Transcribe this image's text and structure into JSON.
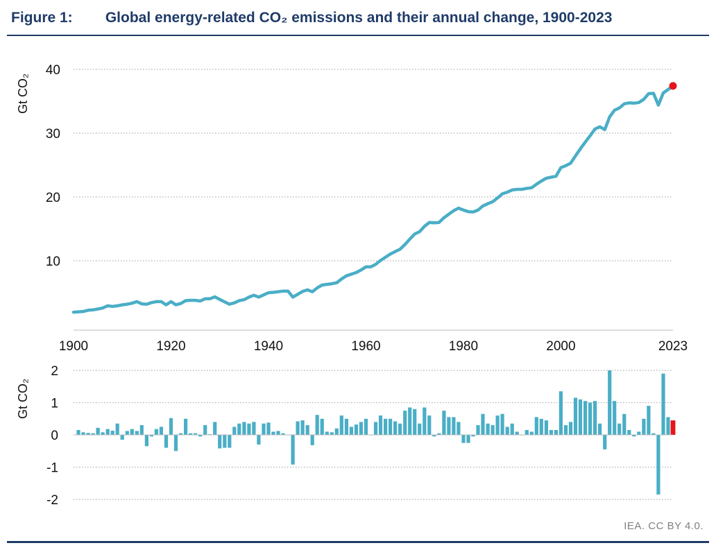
{
  "header": {
    "figure_label": "Figure 1:",
    "title": "Global energy-related CO₂ emissions and their annual change, 1900-2023"
  },
  "credit": "IEA. CC BY 4.0.",
  "colors": {
    "series": "#4aaec6",
    "highlight": "#e8141b",
    "title": "#1f3b68",
    "grid": "#b0b0b0"
  },
  "chart_data": [
    {
      "type": "line",
      "ylabel": "Gt CO₂",
      "ylim": [
        0,
        40
      ],
      "yticks": [
        10,
        20,
        30,
        40
      ],
      "xlim": [
        1900,
        2023
      ],
      "xticks": [
        1900,
        1920,
        1940,
        1960,
        1980,
        2000,
        2023
      ],
      "grid": "horizontal dotted",
      "highlight_point": {
        "x": 2023,
        "y": 37.4
      },
      "x": [
        1900,
        1901,
        1902,
        1903,
        1904,
        1905,
        1906,
        1907,
        1908,
        1909,
        1910,
        1911,
        1912,
        1913,
        1914,
        1915,
        1916,
        1917,
        1918,
        1919,
        1920,
        1921,
        1922,
        1923,
        1924,
        1925,
        1926,
        1927,
        1928,
        1929,
        1930,
        1931,
        1932,
        1933,
        1934,
        1935,
        1936,
        1937,
        1938,
        1939,
        1940,
        1941,
        1942,
        1943,
        1944,
        1945,
        1946,
        1947,
        1948,
        1949,
        1950,
        1951,
        1952,
        1953,
        1954,
        1955,
        1956,
        1957,
        1958,
        1959,
        1960,
        1961,
        1962,
        1963,
        1964,
        1965,
        1966,
        1967,
        1968,
        1969,
        1970,
        1971,
        1972,
        1973,
        1974,
        1975,
        1976,
        1977,
        1978,
        1979,
        1980,
        1981,
        1982,
        1983,
        1984,
        1985,
        1986,
        1987,
        1988,
        1989,
        1990,
        1991,
        1992,
        1993,
        1994,
        1995,
        1996,
        1997,
        1998,
        1999,
        2000,
        2001,
        2002,
        2003,
        2004,
        2005,
        2006,
        2007,
        2008,
        2009,
        2010,
        2011,
        2012,
        2013,
        2014,
        2015,
        2016,
        2017,
        2018,
        2019,
        2020,
        2021,
        2022,
        2023
      ],
      "y": [
        1.95,
        2.0,
        2.05,
        2.25,
        2.3,
        2.45,
        2.6,
        2.95,
        2.85,
        2.95,
        3.1,
        3.2,
        3.35,
        3.6,
        3.25,
        3.2,
        3.45,
        3.6,
        3.6,
        3.1,
        3.6,
        3.1,
        3.3,
        3.75,
        3.8,
        3.8,
        3.7,
        4.05,
        4.05,
        4.35,
        3.95,
        3.55,
        3.2,
        3.4,
        3.75,
        3.9,
        4.3,
        4.6,
        4.3,
        4.65,
        5.0,
        5.05,
        5.15,
        5.25,
        5.25,
        4.3,
        4.75,
        5.2,
        5.45,
        5.15,
        5.75,
        6.2,
        6.3,
        6.4,
        6.55,
        7.15,
        7.65,
        7.9,
        8.15,
        8.55,
        9.05,
        9.05,
        9.45,
        10.05,
        10.55,
        11.05,
        11.45,
        11.8,
        12.55,
        13.4,
        14.2,
        14.55,
        15.4,
        16.0,
        15.95,
        16.0,
        16.75,
        17.3,
        17.85,
        18.25,
        17.95,
        17.7,
        17.65,
        17.95,
        18.6,
        18.95,
        19.25,
        19.85,
        20.5,
        20.75,
        21.1,
        21.2,
        21.2,
        21.35,
        21.45,
        22.0,
        22.5,
        22.95,
        23.1,
        23.25,
        24.6,
        24.9,
        25.3,
        26.45,
        27.55,
        28.6,
        29.6,
        30.65,
        31.0,
        30.55,
        32.55,
        33.6,
        33.95,
        34.6,
        34.75,
        34.7,
        34.8,
        35.3,
        36.2,
        36.25,
        34.4,
        36.3,
        36.85,
        37.4
      ]
    },
    {
      "type": "bar",
      "ylabel": "Gt CO₂",
      "ylim": [
        -2,
        2
      ],
      "yticks": [
        2,
        1,
        0,
        -1,
        -2
      ],
      "grid": "horizontal dotted",
      "highlight_category": 2023,
      "x": [
        1901,
        1902,
        1903,
        1904,
        1905,
        1906,
        1907,
        1908,
        1909,
        1910,
        1911,
        1912,
        1913,
        1914,
        1915,
        1916,
        1917,
        1918,
        1919,
        1920,
        1921,
        1922,
        1923,
        1924,
        1925,
        1926,
        1927,
        1928,
        1929,
        1930,
        1931,
        1932,
        1933,
        1934,
        1935,
        1936,
        1937,
        1938,
        1939,
        1940,
        1941,
        1942,
        1943,
        1944,
        1945,
        1946,
        1947,
        1948,
        1949,
        1950,
        1951,
        1952,
        1953,
        1954,
        1955,
        1956,
        1957,
        1958,
        1959,
        1960,
        1961,
        1962,
        1963,
        1964,
        1965,
        1966,
        1967,
        1968,
        1969,
        1970,
        1971,
        1972,
        1973,
        1974,
        1975,
        1976,
        1977,
        1978,
        1979,
        1980,
        1981,
        1982,
        1983,
        1984,
        1985,
        1986,
        1987,
        1988,
        1989,
        1990,
        1991,
        1992,
        1993,
        1994,
        1995,
        1996,
        1997,
        1998,
        1999,
        2000,
        2001,
        2002,
        2003,
        2004,
        2005,
        2006,
        2007,
        2008,
        2009,
        2010,
        2011,
        2012,
        2013,
        2014,
        2015,
        2016,
        2017,
        2018,
        2019,
        2020,
        2021,
        2022,
        2023
      ],
      "values": [
        0.15,
        0.08,
        0.06,
        0.05,
        0.22,
        0.08,
        0.18,
        0.13,
        0.35,
        -0.15,
        0.12,
        0.18,
        0.12,
        0.3,
        -0.35,
        -0.05,
        0.18,
        0.25,
        -0.4,
        0.52,
        -0.5,
        0.05,
        0.5,
        0.05,
        0.05,
        -0.05,
        0.3,
        0.02,
        0.4,
        -0.42,
        -0.4,
        -0.4,
        0.25,
        0.35,
        0.4,
        0.35,
        0.4,
        -0.3,
        0.35,
        0.38,
        0.1,
        0.12,
        0.05,
        0.0,
        -0.92,
        0.42,
        0.45,
        0.3,
        -0.32,
        0.62,
        0.5,
        0.1,
        0.08,
        0.2,
        0.6,
        0.5,
        0.25,
        0.32,
        0.4,
        0.5,
        0.0,
        0.4,
        0.6,
        0.5,
        0.5,
        0.42,
        0.35,
        0.75,
        0.85,
        0.8,
        0.35,
        0.85,
        0.6,
        -0.05,
        0.05,
        0.75,
        0.55,
        0.55,
        0.4,
        -0.25,
        -0.25,
        -0.05,
        0.3,
        0.65,
        0.35,
        0.3,
        0.6,
        0.65,
        0.25,
        0.35,
        0.1,
        0.0,
        0.15,
        0.1,
        0.55,
        0.5,
        0.45,
        0.15,
        0.15,
        1.35,
        0.3,
        0.4,
        1.15,
        1.1,
        1.05,
        1.0,
        1.05,
        0.35,
        -0.45,
        2.0,
        1.05,
        0.35,
        0.65,
        0.15,
        -0.05,
        0.1,
        0.5,
        0.9,
        0.05,
        -1.85,
        1.9,
        0.55,
        0.45
      ]
    }
  ]
}
